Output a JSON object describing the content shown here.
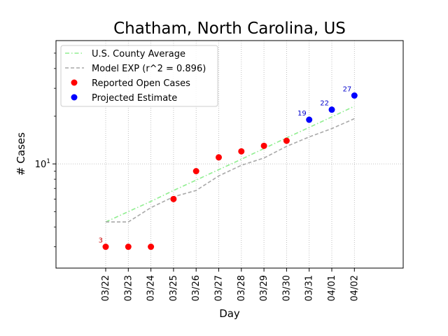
{
  "chart_data": {
    "type": "line",
    "title": "Chatham, North Carolina, US",
    "xlabel": "Day",
    "ylabel": "# Cases",
    "yscale": "log",
    "ylim": [
      2.2,
      60
    ],
    "y_ticks": [
      {
        "value": 10,
        "label": "10^1"
      }
    ],
    "y_minor_ticks": [
      3,
      4,
      5,
      6,
      7,
      8,
      9,
      20,
      30,
      40,
      50
    ],
    "grid": true,
    "legend_position": "upper-left",
    "categories": [
      "03/22",
      "03/23",
      "03/24",
      "03/25",
      "03/26",
      "03/27",
      "03/28",
      "03/29",
      "03/30",
      "03/31",
      "04/01",
      "04/02"
    ],
    "series": [
      {
        "name": "U.S. County Average",
        "style": "dash-dot",
        "color": "#90ee90",
        "values": [
          4.3,
          5.0,
          5.8,
          6.8,
          7.9,
          9.2,
          10.7,
          12.5,
          14.6,
          17.0,
          19.8,
          23.1
        ]
      },
      {
        "name": "Model EXP (r^2 = 0.896)",
        "style": "dashed",
        "color": "#a9a9a9",
        "values": [
          4.3,
          4.3,
          5.3,
          6.2,
          6.8,
          8.4,
          9.8,
          10.9,
          12.9,
          14.8,
          16.7,
          19.3
        ]
      },
      {
        "name": "Reported Open Cases",
        "style": "marker",
        "color": "#ff0000",
        "values": [
          3,
          3,
          3,
          6,
          9,
          11,
          12,
          13,
          14,
          null,
          null,
          null
        ]
      },
      {
        "name": "Projected Estimate",
        "style": "marker",
        "color": "#0000ff",
        "values": [
          null,
          null,
          null,
          null,
          null,
          null,
          null,
          null,
          null,
          19,
          22,
          27
        ]
      }
    ],
    "annotations": [
      {
        "category": "03/22",
        "value": 3,
        "text": "3",
        "color": "#cc0000"
      },
      {
        "category": "03/31",
        "value": 19,
        "text": "19",
        "color": "#0000cc"
      },
      {
        "category": "04/01",
        "value": 22,
        "text": "22",
        "color": "#0000cc"
      },
      {
        "category": "04/02",
        "value": 27,
        "text": "27",
        "color": "#0000cc"
      }
    ]
  }
}
